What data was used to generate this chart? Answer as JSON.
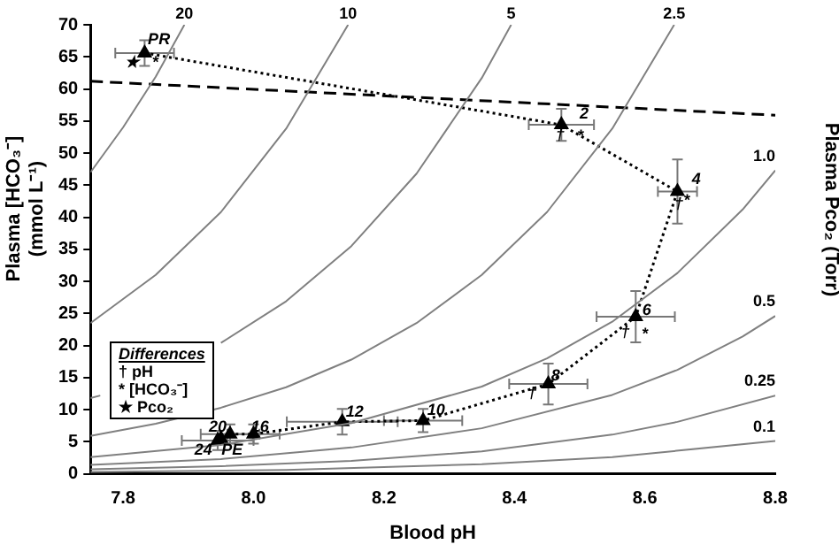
{
  "chart_data": {
    "type": "line",
    "xlabel": "Blood pH",
    "ylabel": "Plasma [HCO₃⁻] (mmol L⁻¹)",
    "y2label": "Plasma Pco₂ (Torr)",
    "xlim": [
      7.75,
      8.8
    ],
    "xticks": [
      7.8,
      {
        "value": 8,
        "label": "8.0"
      },
      8.2,
      8.4,
      8.6,
      8.8
    ],
    "ylim": [
      0,
      70
    ],
    "yticks": [
      0,
      5,
      10,
      15,
      20,
      25,
      30,
      35,
      40,
      45,
      50,
      55,
      60,
      65,
      70
    ],
    "grid": false,
    "legend": false,
    "series": [
      {
        "name": "20",
        "color": "#808080",
        "marker": "none",
        "x": [
          7.75,
          7.8,
          7.85,
          7.894
        ],
        "values": [
          47,
          54,
          61.9,
          70
        ]
      },
      {
        "name": "10",
        "color": "#808080",
        "marker": "none",
        "x": [
          7.75,
          7.85,
          7.95,
          8.05,
          8.145
        ],
        "values": [
          23.5,
          31,
          40.8,
          53.8,
          70
        ]
      },
      {
        "name": "5",
        "color": "#808080",
        "marker": "none",
        "x": [
          7.75,
          7.765,
          7.85,
          7.95,
          8.05,
          8.15,
          8.25,
          8.35,
          8.395
        ],
        "values": [
          11.8,
          12.2,
          null,
          20.4,
          26.9,
          35.5,
          46.8,
          61.7,
          70
        ]
      },
      {
        "name": "2.5",
        "color": "#808080",
        "marker": "none",
        "x": [
          7.75,
          7.85,
          7.95,
          8.05,
          8.15,
          8.25,
          8.35,
          8.45,
          8.55,
          8.645
        ],
        "values": [
          5.9,
          7.8,
          10.3,
          13.5,
          17.8,
          23.5,
          31,
          40.8,
          53.8,
          70
        ]
      },
      {
        "name": "1.0",
        "color": "#808080",
        "marker": "none",
        "x": [
          7.75,
          7.95,
          8.15,
          8.35,
          8.45,
          8.55,
          8.65,
          8.75,
          8.8
        ],
        "values": [
          2.6,
          4.5,
          7.9,
          13.6,
          18,
          23.7,
          31.3,
          41.2,
          47.3
        ]
      },
      {
        "name": "0.5",
        "color": "#808080",
        "marker": "none",
        "x": [
          7.75,
          7.95,
          8.15,
          8.35,
          8.55,
          8.65,
          8.75,
          8.8
        ],
        "values": [
          1.4,
          2.3,
          4.1,
          7.1,
          12.3,
          16.2,
          21.4,
          24.6
        ]
      },
      {
        "name": "0.25",
        "color": "#808080",
        "marker": "none",
        "x": [
          7.75,
          7.95,
          8.15,
          8.35,
          8.55,
          8.65,
          8.8
        ],
        "values": [
          0.7,
          1.2,
          2,
          3.5,
          6.1,
          8.1,
          12.2
        ]
      },
      {
        "name": "0.1",
        "color": "#808080",
        "marker": "none",
        "x": [
          7.75,
          8.05,
          8.35,
          8.55,
          8.8
        ],
        "values": [
          0.3,
          0.6,
          1.5,
          2.6,
          5.1
        ]
      },
      {
        "color": "#000000",
        "marker": "none",
        "line_style": "dashed",
        "x": [
          7.75,
          8.8
        ],
        "values": [
          61.2,
          55.9
        ]
      },
      {
        "color": "#000000",
        "marker": "triangle",
        "line_style": "dotted",
        "x": [
          7.833,
          8.472,
          8.65,
          8.586,
          8.452,
          8.26,
          8.136,
          8.0,
          7.964,
          7.945,
          7.95
        ],
        "values": [
          65.6,
          54.4,
          44,
          24.5,
          14,
          8.3,
          8.1,
          6.2,
          6.2,
          5.2,
          5.5
        ],
        "errors": [
          2,
          2.5,
          5,
          4,
          3.2,
          1.8,
          2,
          1.5,
          1.5,
          1.5,
          null
        ],
        "xerrors": [
          0.045,
          0.05,
          0.03,
          0.06,
          0.06,
          0.06,
          0.085,
          0.04,
          0.045,
          0.055,
          null
        ]
      }
    ],
    "annotations": [
      "Differences",
      "† pH",
      "* [HCO₃⁻]",
      "★ Pco₂",
      {
        "text": "PR",
        "x": 7.855,
        "y": 67.6
      },
      {
        "text": "2",
        "x": 8.507,
        "y": 56
      },
      {
        "text": "4",
        "x": 8.679,
        "y": 45.8
      },
      {
        "text": "6",
        "x": 8.603,
        "y": 25.5
      },
      {
        "text": "8",
        "x": 8.463,
        "y": 15.3
      },
      {
        "text": "10",
        "x": 8.28,
        "y": 9.9
      },
      {
        "text": "12",
        "x": 8.155,
        "y": 9.6
      },
      {
        "text": "16",
        "x": 8.01,
        "y": 7.3
      },
      {
        "text": "20",
        "x": 7.945,
        "y": 7.3
      },
      {
        "text": "24",
        "x": 7.923,
        "y": 3.6
      },
      {
        "text": "PE",
        "x": 7.967,
        "y": 3.6
      },
      {
        "text": "★",
        "x": 7.814,
        "y": 64
      },
      {
        "text": "*",
        "x": 7.849,
        "y": 64
      },
      {
        "text": "†",
        "x": 8.47,
        "y": 52.8
      },
      {
        "text": "*",
        "x": 8.501,
        "y": 52.6
      },
      {
        "text": "†",
        "x": 8.652,
        "y": 42
      },
      {
        "text": "*",
        "x": 8.664,
        "y": 42.6
      },
      {
        "text": "†",
        "x": 8.57,
        "y": 22
      },
      {
        "text": "*",
        "x": 8.6,
        "y": 21.7
      },
      {
        "text": "†",
        "x": 8.427,
        "y": 12.5
      }
    ]
  }
}
